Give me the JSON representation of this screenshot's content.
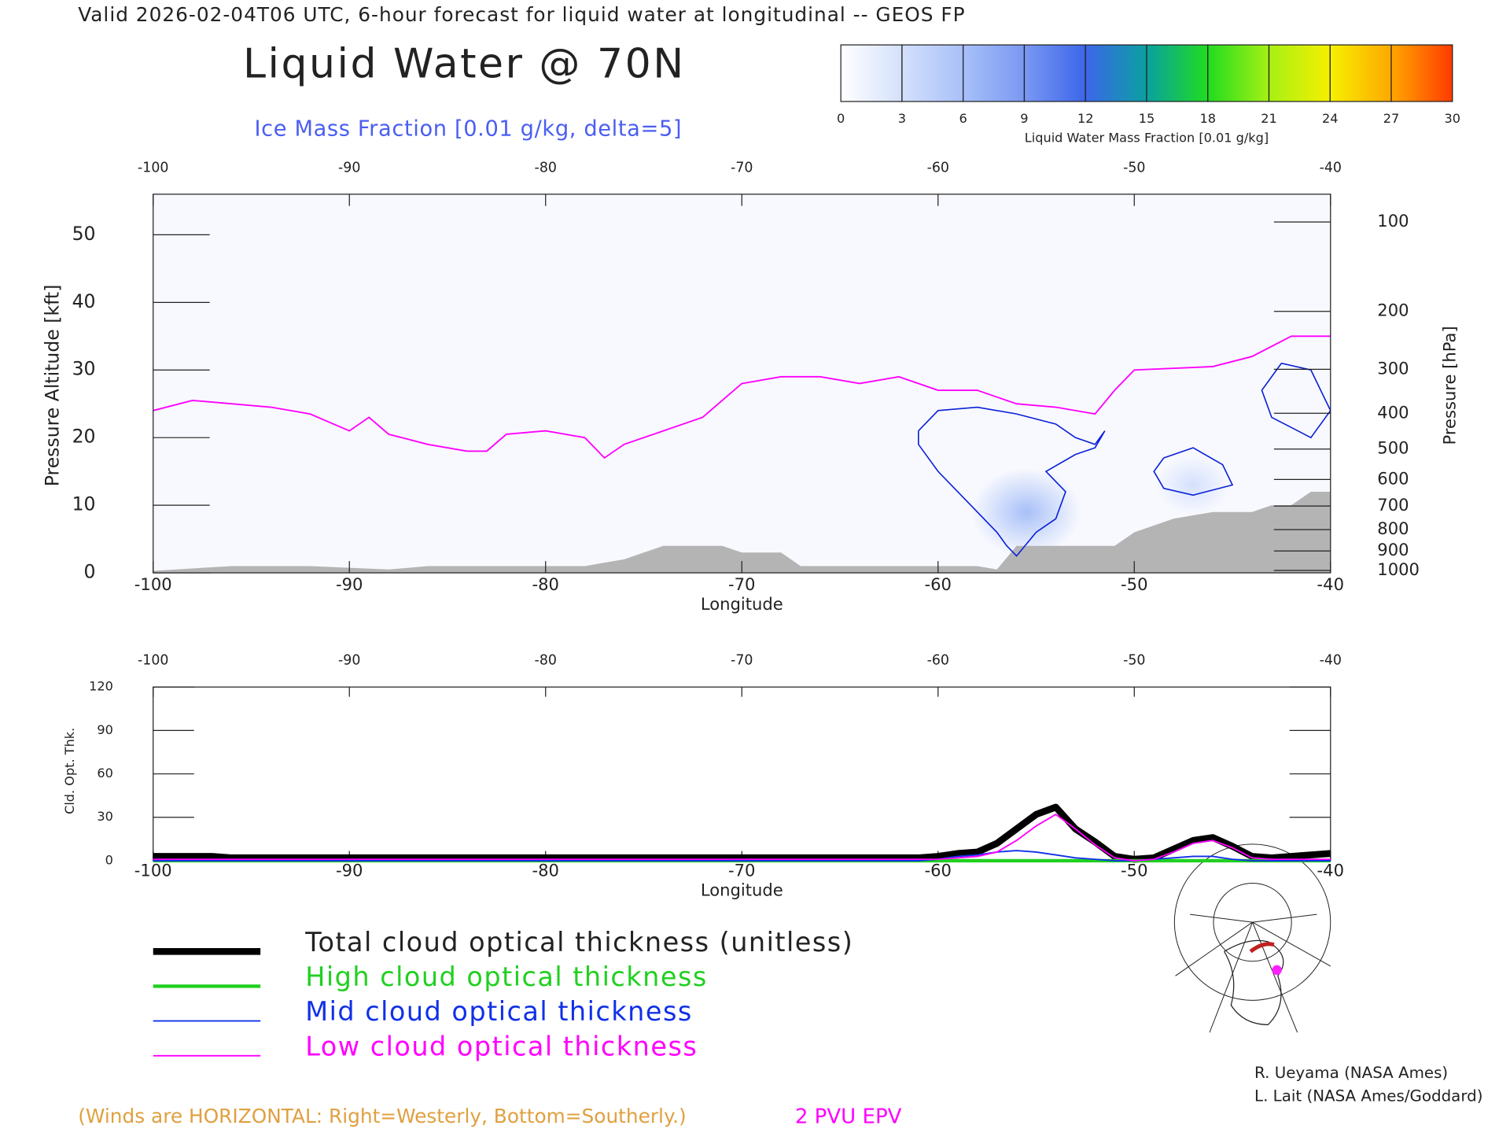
{
  "title": "Valid 2026-02-04T06 UTC, 6-hour forecast for liquid water at longitudinal -- GEOS FP",
  "note": "(Winds are HORIZONTAL: Right=Westerly, Bottom=Southerly.)",
  "credits": [
    "R. Ueyama (NASA Ames)",
    "L. Lait (NASA Ames/Goddard)"
  ],
  "chart_data": [
    {
      "type": "colorbar",
      "label": "Liquid Water Mass Fraction [0.01 g/kg]",
      "xlim": [
        0,
        30
      ],
      "xticks": [
        0,
        3,
        6,
        9,
        12,
        15,
        18,
        21,
        24,
        27,
        30
      ],
      "colors": [
        "#ffffff",
        "#d4e0fc",
        "#a8c0f8",
        "#7a98f2",
        "#3c66ea",
        "#0aa0a0",
        "#20dc20",
        "#a6f014",
        "#f6f000",
        "#ffa800",
        "#ff3a00"
      ]
    },
    {
      "type": "cross-section",
      "title": "Liquid Water @ 70N",
      "subtitle": "Ice Mass Fraction [0.01 g/kg, delta=5]",
      "xlabel": "Longitude",
      "ylabel": "Pressure Altitude [kft]",
      "y2label": "Pressure [hPa]",
      "xlim": [
        -100,
        -40
      ],
      "xticks": [
        -100,
        -90,
        -80,
        -70,
        -60,
        -50,
        -40
      ],
      "ylim": [
        0,
        56
      ],
      "yticks": [
        0,
        10,
        20,
        30,
        40,
        50
      ],
      "y2lim": [
        1013,
        79
      ],
      "y2ticks": [
        100,
        200,
        300,
        400,
        500,
        600,
        700,
        800,
        900,
        1000
      ],
      "series": [
        {
          "name": "2 PVU EPV",
          "color": "#ff00ff",
          "x": [
            -100,
            -98,
            -96,
            -94,
            -92,
            -90,
            -89,
            -88,
            -86,
            -84,
            -83,
            -82,
            -80,
            -78,
            -77,
            -76,
            -74,
            -72,
            -70,
            -68,
            -66,
            -64,
            -62,
            -60,
            -58,
            -56,
            -54,
            -52,
            -51,
            -50,
            -46,
            -44,
            -42,
            -40
          ],
          "values": [
            24,
            25.5,
            25,
            24.5,
            23.5,
            21,
            23,
            20.5,
            19,
            18,
            18,
            20.5,
            21,
            20,
            17,
            19,
            21,
            23,
            28,
            29,
            29,
            28,
            29,
            27,
            27,
            25,
            24.5,
            23.5,
            27,
            30,
            30.5,
            32,
            35,
            35
          ]
        },
        {
          "color": "#b4b4b4",
          "fill": true,
          "x": [
            -100,
            -96,
            -92,
            -88,
            -86,
            -78,
            -76,
            -74,
            -71,
            -70,
            -68,
            -67,
            -58,
            -57,
            -56,
            -52,
            -51,
            -50,
            -48,
            -46,
            -44,
            -43,
            -42,
            -41,
            -40
          ],
          "values": [
            0.3,
            1,
            1,
            0.5,
            1,
            1,
            2,
            4,
            4,
            3,
            3,
            1,
            1,
            0.5,
            4,
            4,
            4,
            6,
            8,
            9,
            9,
            10,
            10,
            12,
            12
          ]
        }
      ],
      "contours": [
        {
          "color": "#0a20d8",
          "x": [
            -61,
            -60,
            -58,
            -56,
            -54,
            -53,
            -52,
            -51.5,
            -52,
            -53,
            -54.5,
            -53.5,
            -54,
            -55,
            -56,
            -56.5,
            -57,
            -58,
            -60,
            -61,
            -61
          ],
          "values": [
            21,
            24,
            24.5,
            23.5,
            22,
            20,
            19,
            21,
            18.5,
            17.5,
            15,
            12,
            8,
            6,
            2.5,
            4,
            6,
            9,
            15,
            19,
            21
          ]
        },
        {
          "color": "#0a20d8",
          "x": [
            -48.5,
            -47,
            -45.5,
            -45,
            -47,
            -48.5,
            -49,
            -48.5
          ],
          "values": [
            17,
            18.5,
            16,
            13,
            11.5,
            12.5,
            15,
            17
          ]
        },
        {
          "color": "#0a20d8",
          "x": [
            -42.5,
            -41,
            -40,
            -41,
            -43,
            -43.5,
            -42.5
          ],
          "values": [
            31,
            30,
            24,
            20,
            23,
            27,
            31
          ]
        }
      ],
      "liquid_water": {
        "x": [
          -55.5,
          -47
        ],
        "y": [
          9,
          13
        ],
        "values": [
          6,
          3
        ]
      }
    },
    {
      "type": "line",
      "ylabel": "Cld. Opt. Thk.",
      "xlabel": "Longitude",
      "xlim": [
        -100,
        -40
      ],
      "xticks": [
        -100,
        -90,
        -80,
        -70,
        -60,
        -50,
        -40
      ],
      "ylim": [
        0,
        120
      ],
      "yticks": [
        0,
        30,
        60,
        90,
        120
      ],
      "x": [
        -100,
        -99,
        -98,
        -97,
        -96,
        -95,
        -94,
        -93,
        -92,
        -91,
        -90,
        -89,
        -88,
        -87,
        -86,
        -85,
        -84,
        -83,
        -82,
        -81,
        -80,
        -79,
        -78,
        -77,
        -76,
        -75,
        -74,
        -73,
        -72,
        -71,
        -70,
        -69,
        -68,
        -67,
        -66,
        -65,
        -64,
        -63,
        -62,
        -61,
        -60,
        -59,
        -58,
        -57,
        -56,
        -55,
        -54,
        -53,
        -52,
        -51,
        -50,
        -49,
        -48,
        -47,
        -46,
        -45,
        -44,
        -43,
        -42,
        -41,
        -40
      ],
      "series": [
        {
          "name": "Total cloud optical thickness (unitless)",
          "color": "#000000",
          "width": 7,
          "values": [
            3,
            3,
            3,
            3,
            2,
            2,
            2,
            2,
            2,
            2,
            2,
            2,
            2,
            2,
            2,
            2,
            2,
            2,
            2,
            2,
            2,
            2,
            2,
            2,
            2,
            2,
            2,
            2,
            2,
            2,
            2,
            2,
            2,
            2,
            2,
            2,
            2,
            2,
            2,
            2,
            3,
            5,
            6,
            12,
            22,
            32,
            37,
            22,
            13,
            3,
            1,
            2,
            8,
            14,
            16,
            10,
            3,
            2,
            3,
            4,
            5
          ]
        },
        {
          "name": "High cloud optical thickness",
          "color": "#20d020",
          "width": 3.5,
          "values": [
            0,
            0,
            0,
            0,
            0,
            0,
            0,
            0,
            0,
            0,
            0,
            0,
            0,
            0,
            0,
            0,
            0,
            0,
            0,
            0,
            0,
            0,
            0,
            0,
            0,
            0,
            0,
            0,
            0,
            0,
            0,
            0,
            0,
            0,
            0,
            0,
            0,
            0,
            0,
            0,
            0,
            0,
            0,
            0,
            0,
            0,
            0,
            0,
            0,
            0,
            0,
            0,
            0,
            0,
            0,
            0,
            0,
            0,
            0,
            0,
            0
          ]
        },
        {
          "name": "Mid cloud optical thickness",
          "color": "#1030e8",
          "width": 1.5,
          "values": [
            0,
            0,
            0,
            0,
            0,
            0,
            0,
            0,
            0,
            0,
            0,
            0,
            0,
            0,
            0,
            0,
            0,
            0,
            0,
            0,
            0,
            0,
            0,
            0,
            0,
            0,
            0,
            0,
            0,
            0,
            0,
            0,
            0,
            0,
            0,
            0,
            0,
            0,
            0,
            0,
            1,
            3,
            4,
            6,
            7,
            6,
            4,
            2,
            1,
            0,
            0,
            1,
            2,
            3,
            3,
            1,
            0,
            0,
            0,
            0,
            0
          ]
        },
        {
          "name": "Low cloud optical thickness",
          "color": "#ff00ff",
          "width": 1.5,
          "values": [
            1,
            1,
            1,
            1,
            1,
            1,
            1,
            1,
            1,
            1,
            1,
            1,
            1,
            1,
            1,
            1,
            1,
            1,
            1,
            1,
            1,
            1,
            1,
            1,
            1,
            1,
            1,
            1,
            1,
            1,
            1,
            1,
            1,
            1,
            1,
            1,
            1,
            1,
            1,
            1,
            1,
            2,
            3,
            6,
            14,
            24,
            32,
            22,
            11,
            2,
            0,
            1,
            6,
            12,
            14,
            9,
            2,
            1,
            1,
            1,
            1
          ]
        }
      ]
    }
  ]
}
